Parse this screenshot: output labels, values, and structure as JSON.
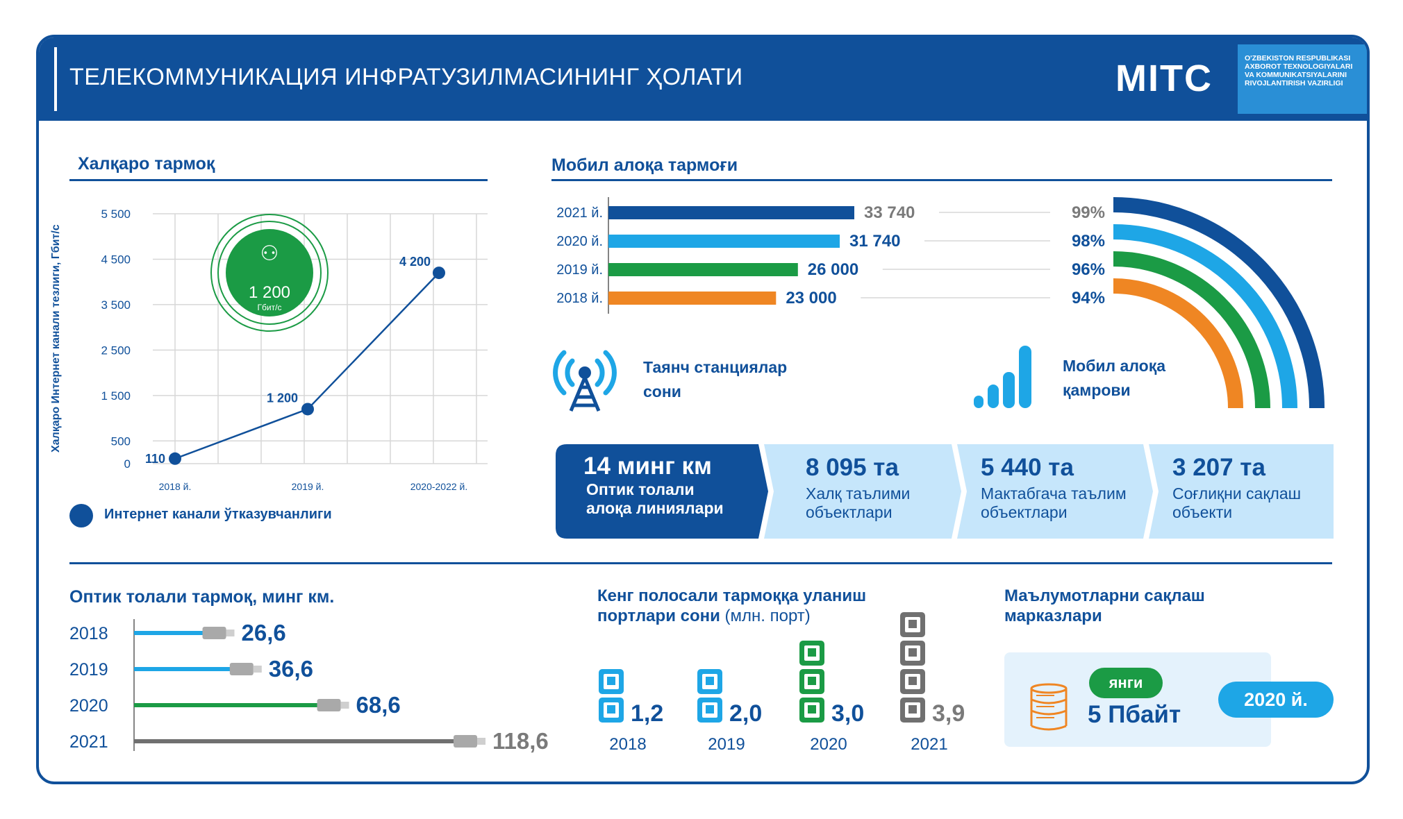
{
  "header": {
    "title": "ТЕЛЕКОММУНИКАЦИЯ ИНФРАТУЗИЛМАСИНИНГ ҲОЛАТИ",
    "logo": "MITC",
    "ministry_lines": [
      "O'ZBEKISTON RESPUBLIKASI",
      "AXBOROT TEXNOLOGIYALARI",
      "VA KOMMUNIKATSIYALARINI",
      "RIVOJLANTIRISH VAZIRLIGI"
    ]
  },
  "colors": {
    "navy": "#10509a",
    "light_blue": "#1ea6e6",
    "green": "#1b9b45",
    "orange": "#ef8623",
    "gray": "#707070",
    "tile_light": "#c6e6fb"
  },
  "international": {
    "title": "Халқаро тармоқ",
    "ylabel": "Халқаро Интернет канали тезлиги, Гбит/с",
    "legend": "Интернет канали ўтказувчанлиги",
    "badge_value": "1 200",
    "badge_unit": "Гбит/с",
    "point_labels": [
      "110",
      "1 200",
      "4 200"
    ],
    "tick_labels": [
      "5 500",
      "4 500",
      "3 500",
      "2 500",
      "1 500",
      "500",
      "0"
    ]
  },
  "mobile": {
    "title": "Мобил алоқа тармоғи",
    "stations_label": [
      "Таянч станциялар",
      "сони"
    ],
    "coverage_label": [
      "Мобил алоқа",
      "қамрови"
    ]
  },
  "tiles": [
    {
      "big": "14 минг км",
      "sub1": "Оптик толали",
      "sub2": "алоқа линиялари"
    },
    {
      "big": "8 095 та",
      "sub1": "Халқ таълими",
      "sub2": "объектлари"
    },
    {
      "big": "5 440 та",
      "sub1": "Мактабгача таълим",
      "sub2": "объектлари"
    },
    {
      "big": "3 207 та",
      "sub1": "Соғлиқни сақлаш",
      "sub2": "объекти"
    }
  ],
  "fiber": {
    "title": "Оптик толали тармоқ, минг км."
  },
  "broadband": {
    "title1": "Кенг полосали тармоққа уланиш",
    "title2": "портлари сони",
    "title2_unit": "(млн. порт)"
  },
  "datacenter": {
    "title1": "Маълумотларни сақлаш",
    "title2": "марказлари",
    "badge": "янги",
    "value": "5 Пбайт",
    "year": "2020 й."
  },
  "chart_data": [
    {
      "type": "line",
      "title": "Халқаро тармоқ",
      "ylabel": "Халқаро Интернет канали тезлиги, Гбит/с",
      "categories": [
        "2018 й.",
        "2019 й.",
        "2020-2022 й."
      ],
      "series": [
        {
          "name": "Интернет канали ўтказувчанлиги",
          "values": [
            110,
            1200,
            4200
          ]
        }
      ],
      "ylim": [
        0,
        5500
      ],
      "yticks": [
        0,
        500,
        1500,
        2500,
        3500,
        4500,
        5500
      ],
      "grid": true,
      "legend": "bottom-left"
    },
    {
      "type": "bar",
      "orientation": "horizontal",
      "title": "Таянч станциялар сони",
      "categories": [
        "2021 й.",
        "2020 й.",
        "2019 й.",
        "2018 й."
      ],
      "values": [
        33740,
        31740,
        26000,
        23000
      ],
      "labels": [
        "33 740",
        "31 740",
        "26 000",
        "23 000"
      ]
    },
    {
      "type": "bar",
      "orientation": "radial",
      "title": "Мобил алоқа қамрови",
      "categories": [
        "2021 й.",
        "2020 й.",
        "2019 й.",
        "2018 й."
      ],
      "values": [
        99,
        98,
        96,
        94
      ],
      "labels": [
        "99%",
        "98%",
        "96%",
        "94%"
      ]
    },
    {
      "type": "bar",
      "orientation": "horizontal",
      "title": "Оптик толали тармоқ, минг км.",
      "categories": [
        "2018",
        "2019",
        "2020",
        "2021"
      ],
      "values": [
        26.6,
        36.6,
        68.6,
        118.6
      ],
      "labels": [
        "26,6",
        "36,6",
        "68,6",
        "118,6"
      ]
    },
    {
      "type": "bar",
      "title": "Кенг полосали тармоққа уланиш портлари сони (млн. порт)",
      "categories": [
        "2018",
        "2019",
        "2020",
        "2021"
      ],
      "values": [
        1.2,
        2.0,
        3.0,
        3.9
      ],
      "labels": [
        "1,2",
        "2,0",
        "3,0",
        "3,9"
      ]
    }
  ]
}
